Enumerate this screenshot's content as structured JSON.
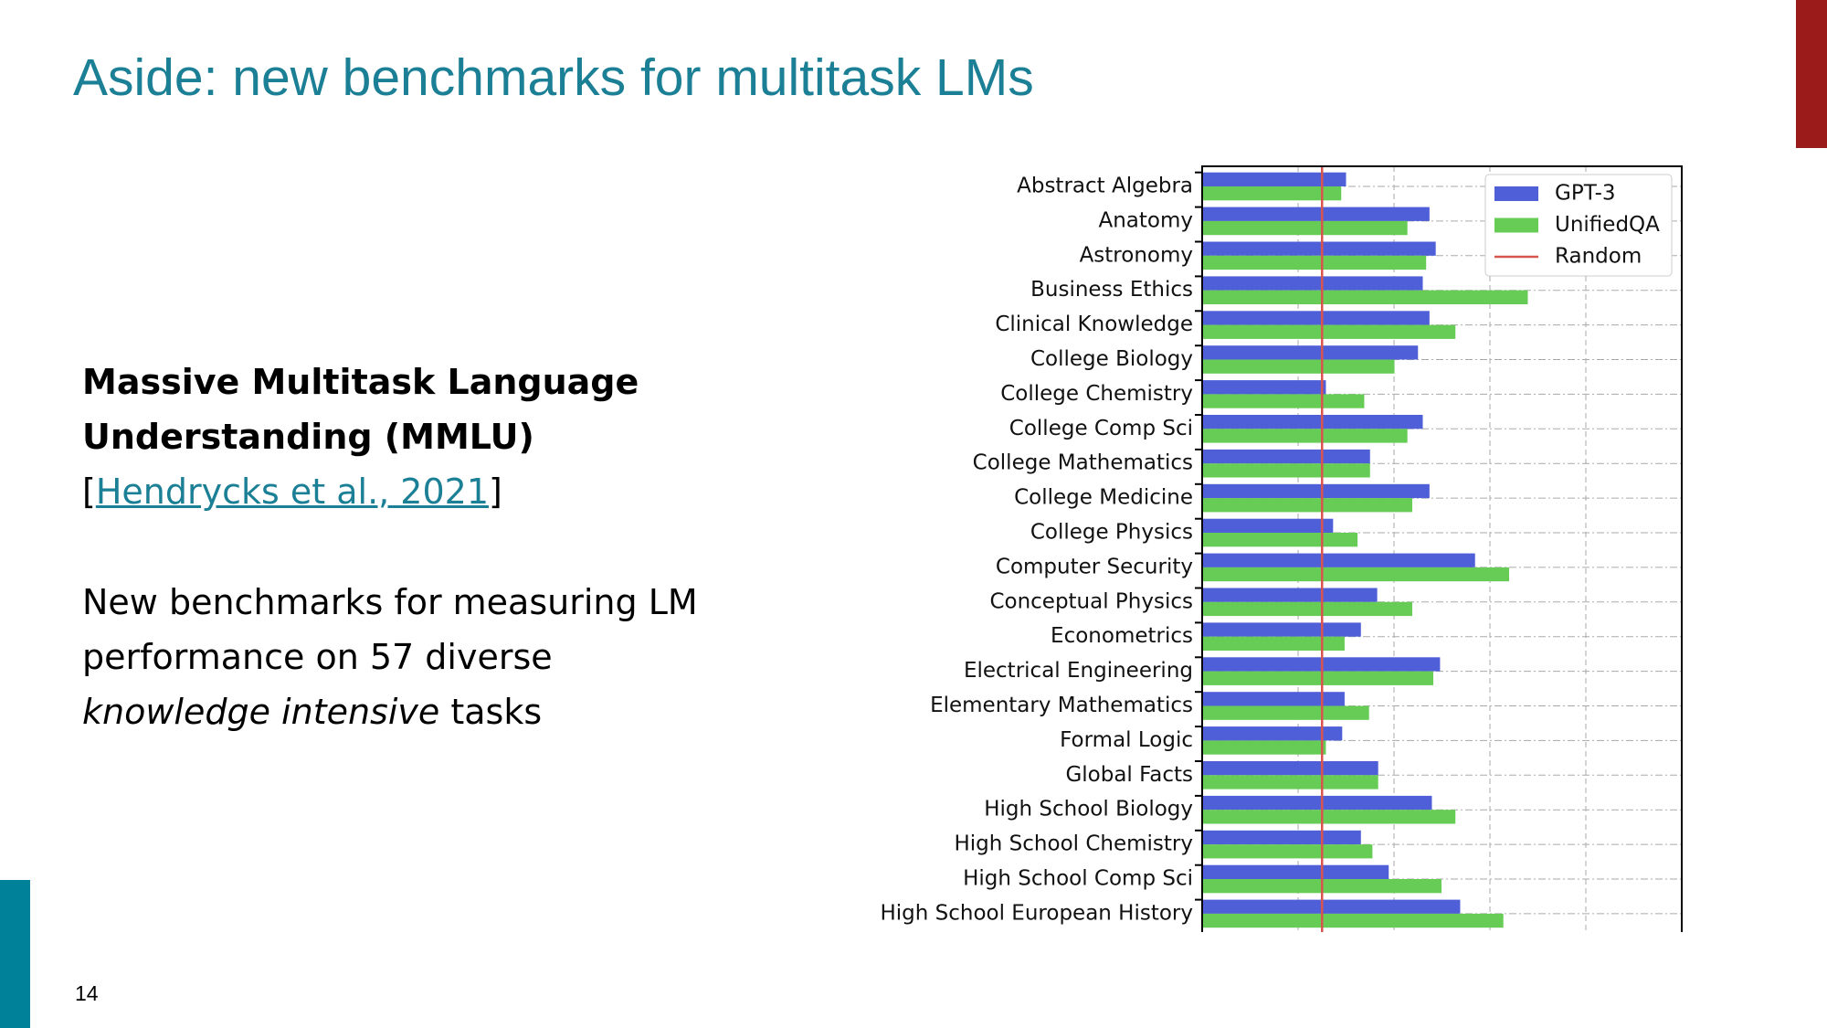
{
  "slide": {
    "title": "Aside: new benchmarks for multitask LMs",
    "heading_lines": [
      "Massive Multitask Language",
      "Understanding (MMLU)"
    ],
    "citation": {
      "open": "[",
      "link": "Hendrycks et al., 2021",
      "close": "]"
    },
    "body_lines": [
      "New benchmarks for measuring LM",
      "performance on 57 diverse"
    ],
    "body_emphasis": "knowledge intensive",
    "body_tail": "tasks",
    "page_number": "14"
  },
  "chart_data": {
    "type": "hbar",
    "categories": [
      "Abstract Algebra",
      "Anatomy",
      "Astronomy",
      "Business Ethics",
      "Clinical Knowledge",
      "College Biology",
      "College Chemistry",
      "College Comp Sci",
      "College Mathematics",
      "College Medicine",
      "College Physics",
      "Computer Security",
      "Conceptual Physics",
      "Econometrics",
      "Electrical Engineering",
      "Elementary Mathematics",
      "Formal Logic",
      "Global Facts",
      "High School Biology",
      "High School Chemistry",
      "High School Comp Sci",
      "High School European History"
    ],
    "series": [
      {
        "name": "GPT-3",
        "color": "#4f5fd8",
        "values": [
          30,
          47.4,
          48.7,
          46,
          47.4,
          45,
          25.8,
          46,
          35,
          47.4,
          27.3,
          56.9,
          36.5,
          33.1,
          49.6,
          29.7,
          29.2,
          36.7,
          47.9,
          33.1,
          38.9,
          53.8
        ]
      },
      {
        "name": "UnifiedQA",
        "color": "#66cc55",
        "values": [
          29,
          42.8,
          46.7,
          67.9,
          52.8,
          40.1,
          33.8,
          42.8,
          35,
          43.8,
          32.4,
          64,
          43.8,
          29.7,
          48.2,
          34.8,
          25.8,
          36.7,
          52.8,
          35.5,
          49.9,
          62.8
        ]
      }
    ],
    "reference_lines": [
      {
        "name": "Random",
        "value": 25,
        "color": "#d9534f"
      }
    ],
    "xlim": [
      0,
      100
    ],
    "xticks": [
      20,
      40,
      60,
      80
    ],
    "grid": true
  }
}
